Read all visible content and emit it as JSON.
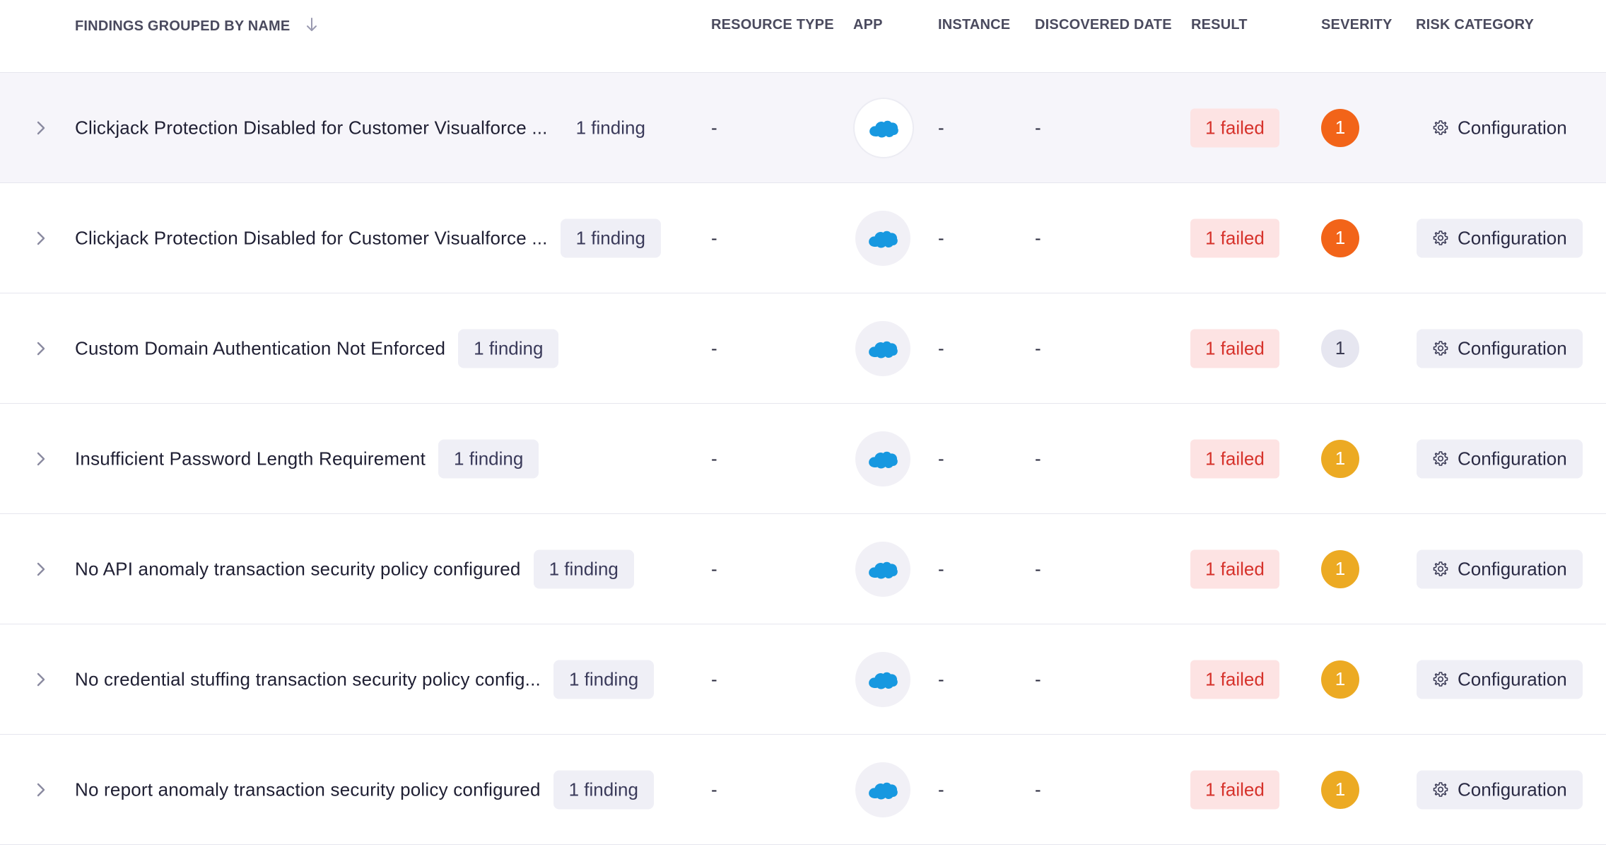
{
  "columns": {
    "name": "FINDINGS GROUPED BY NAME",
    "resource_type": "RESOURCE TYPE",
    "app": "APP",
    "instance": "INSTANCE",
    "discovered_date": "DISCOVERED DATE",
    "result": "RESULT",
    "severity": "SEVERITY",
    "risk_category": "RISK CATEGORY"
  },
  "colors": {
    "severity_high": "#f26419",
    "severity_medium": "#ecaa23",
    "severity_low": "#e6e6f0",
    "failed_bg": "#fde3e3",
    "failed_text": "#d6322b",
    "salesforce_blue": "#1798e0"
  },
  "icons": {
    "sort": "arrow-down-icon",
    "expand": "chevron-right-icon",
    "app": "salesforce-cloud-icon",
    "risk": "gear-icon"
  },
  "rows": [
    {
      "name": "Clickjack Protection Disabled for Customer Visualforce ...",
      "count": "1 finding",
      "resource_type": "-",
      "instance": "-",
      "discovered_date": "-",
      "result": "1 failed",
      "severity": "1",
      "severity_level": "high",
      "risk_category": "Configuration"
    },
    {
      "name": "Clickjack Protection Disabled for Customer Visualforce ...",
      "count": "1 finding",
      "resource_type": "-",
      "instance": "-",
      "discovered_date": "-",
      "result": "1 failed",
      "severity": "1",
      "severity_level": "high",
      "risk_category": "Configuration"
    },
    {
      "name": "Custom Domain Authentication Not Enforced",
      "count": "1 finding",
      "resource_type": "-",
      "instance": "-",
      "discovered_date": "-",
      "result": "1 failed",
      "severity": "1",
      "severity_level": "low",
      "risk_category": "Configuration"
    },
    {
      "name": "Insufficient Password Length Requirement",
      "count": "1 finding",
      "resource_type": "-",
      "instance": "-",
      "discovered_date": "-",
      "result": "1 failed",
      "severity": "1",
      "severity_level": "medium",
      "risk_category": "Configuration"
    },
    {
      "name": "No API anomaly transaction security policy configured",
      "count": "1 finding",
      "resource_type": "-",
      "instance": "-",
      "discovered_date": "-",
      "result": "1 failed",
      "severity": "1",
      "severity_level": "medium",
      "risk_category": "Configuration"
    },
    {
      "name": "No credential stuffing transaction security policy config...",
      "count": "1 finding",
      "resource_type": "-",
      "instance": "-",
      "discovered_date": "-",
      "result": "1 failed",
      "severity": "1",
      "severity_level": "medium",
      "risk_category": "Configuration"
    },
    {
      "name": "No report anomaly transaction security policy configured",
      "count": "1 finding",
      "resource_type": "-",
      "instance": "-",
      "discovered_date": "-",
      "result": "1 failed",
      "severity": "1",
      "severity_level": "medium",
      "risk_category": "Configuration"
    }
  ]
}
